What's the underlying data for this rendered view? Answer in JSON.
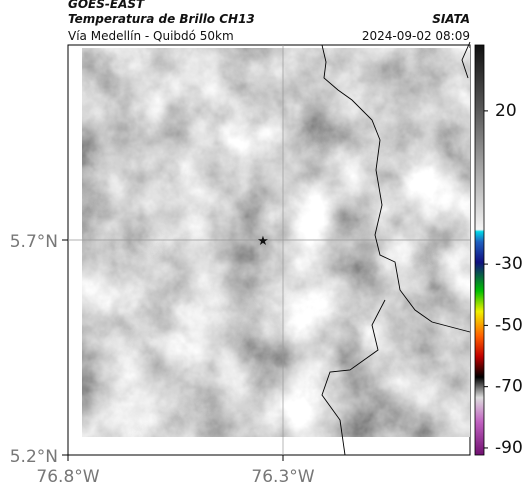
{
  "header": {
    "title": "GOES-EAST",
    "subtitle": "Temperatura de Brillo CH13",
    "region": "Vía Medellín - Quibdó 50km",
    "source": "SIATA",
    "timestamp": "2024-09-02 08:09"
  },
  "map": {
    "lat_labels": [
      "5.7°N",
      "5.2°N"
    ],
    "lon_labels": [
      "76.8°W",
      "76.3°W"
    ]
  },
  "colorbar": {
    "range": [
      41.5,
      -92.3
    ],
    "ticks": [
      20,
      -30,
      -50,
      -70,
      -90
    ]
  }
}
